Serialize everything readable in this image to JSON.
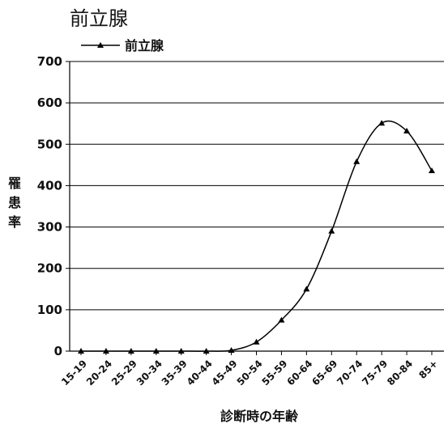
{
  "chart_data": {
    "type": "line",
    "title": "前立腺",
    "xlabel": "診断時の年齢",
    "ylabel": "罹患率",
    "categories": [
      "15-19",
      "20-24",
      "25-29",
      "30-34",
      "35-39",
      "40-44",
      "45-49",
      "50-54",
      "55-59",
      "60-64",
      "65-69",
      "70-74",
      "75-79",
      "80-84",
      "85+"
    ],
    "series": [
      {
        "name": "前立腺",
        "values": [
          0,
          0,
          0,
          0,
          0,
          0,
          2,
          22,
          75,
          150,
          290,
          458,
          551,
          532,
          436
        ],
        "color": "#000000",
        "marker": "triangle"
      }
    ],
    "ylim": [
      0,
      700
    ],
    "yticks": [
      0,
      100,
      200,
      300,
      400,
      500,
      600,
      700
    ],
    "grid": true,
    "legend_position": "top-left"
  }
}
